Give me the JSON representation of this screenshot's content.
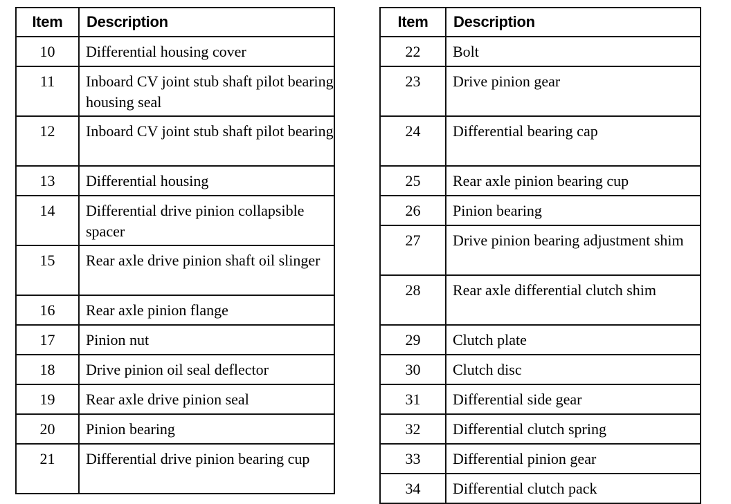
{
  "left_table": {
    "headers": {
      "item": "Item",
      "description": "Description"
    },
    "rows": [
      {
        "item": "10",
        "description": "Differential housing cover"
      },
      {
        "item": "11",
        "description": "Inboard CV joint stub shaft pilot bearing housing seal"
      },
      {
        "item": "12",
        "description": "Inboard CV joint stub shaft pilot bearing"
      },
      {
        "item": "13",
        "description": "Differential housing"
      },
      {
        "item": "14",
        "description": "Differential drive pinion collapsible spacer"
      },
      {
        "item": "15",
        "description": "Rear axle drive pinion shaft oil slinger"
      },
      {
        "item": "16",
        "description": "Rear axle pinion flange"
      },
      {
        "item": "17",
        "description": "Pinion nut"
      },
      {
        "item": "18",
        "description": "Drive pinion oil seal deflector"
      },
      {
        "item": "19",
        "description": "Rear axle drive pinion seal"
      },
      {
        "item": "20",
        "description": "Pinion bearing"
      },
      {
        "item": "21",
        "description": "Differential drive pinion bearing cup"
      }
    ]
  },
  "right_table": {
    "headers": {
      "item": "Item",
      "description": "Description"
    },
    "rows": [
      {
        "item": "22",
        "description": "Bolt"
      },
      {
        "item": "23",
        "description": "Drive pinion gear"
      },
      {
        "item": "24",
        "description": "Differential bearing cap"
      },
      {
        "item": "25",
        "description": "Rear axle pinion bearing cup"
      },
      {
        "item": "26",
        "description": "Pinion bearing"
      },
      {
        "item": "27",
        "description": "Drive pinion bearing adjustment shim"
      },
      {
        "item": "28",
        "description": "Rear axle differential clutch shim"
      },
      {
        "item": "29",
        "description": "Clutch plate"
      },
      {
        "item": "30",
        "description": "Clutch disc"
      },
      {
        "item": "31",
        "description": "Differential side gear"
      },
      {
        "item": "32",
        "description": "Differential clutch spring"
      },
      {
        "item": "33",
        "description": "Differential pinion gear"
      },
      {
        "item": "34",
        "description": "Differential clutch pack"
      }
    ]
  }
}
